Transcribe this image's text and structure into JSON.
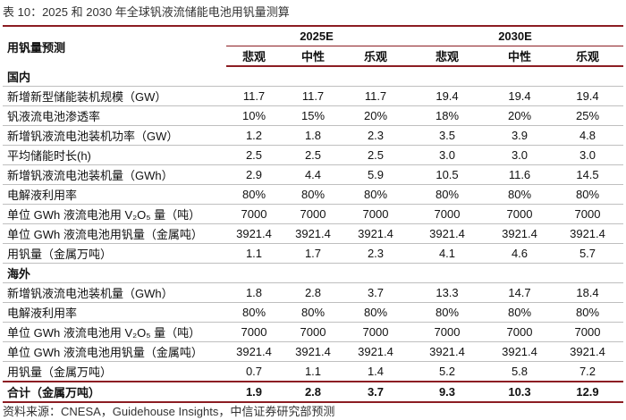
{
  "title": "表 10：2025 和 2030 年全球钒液流储能电池用钒量测算",
  "table": {
    "corner": "用钒量预测",
    "groups": [
      "2025E",
      "2030E"
    ],
    "scenarios": [
      "悲观",
      "中性",
      "乐观",
      "悲观",
      "中性",
      "乐观"
    ],
    "sections": [
      {
        "name": "国内",
        "rows": [
          {
            "label": "新增新型储能装机规模（GW）",
            "values": [
              "11.7",
              "11.7",
              "11.7",
              "19.4",
              "19.4",
              "19.4"
            ]
          },
          {
            "label": "钒液流电池渗透率",
            "values": [
              "10%",
              "15%",
              "20%",
              "18%",
              "20%",
              "25%"
            ]
          },
          {
            "label": "新增钒液流电池装机功率（GW）",
            "values": [
              "1.2",
              "1.8",
              "2.3",
              "3.5",
              "3.9",
              "4.8"
            ]
          },
          {
            "label": "平均储能时长(h)",
            "values": [
              "2.5",
              "2.5",
              "2.5",
              "3.0",
              "3.0",
              "3.0"
            ]
          },
          {
            "label": "新增钒液流电池装机量（GWh）",
            "values": [
              "2.9",
              "4.4",
              "5.9",
              "10.5",
              "11.6",
              "14.5"
            ]
          },
          {
            "label": "电解液利用率",
            "values": [
              "80%",
              "80%",
              "80%",
              "80%",
              "80%",
              "80%"
            ]
          },
          {
            "label": "单位 GWh 液流电池用 V₂O₅ 量（吨）",
            "values": [
              "7000",
              "7000",
              "7000",
              "7000",
              "7000",
              "7000"
            ]
          },
          {
            "label": "单位 GWh 液流电池用钒量（金属吨）",
            "values": [
              "3921.4",
              "3921.4",
              "3921.4",
              "3921.4",
              "3921.4",
              "3921.4"
            ]
          },
          {
            "label": "用钒量（金属万吨）",
            "values": [
              "1.1",
              "1.7",
              "2.3",
              "4.1",
              "4.6",
              "5.7"
            ]
          }
        ]
      },
      {
        "name": "海外",
        "rows": [
          {
            "label": "新增钒液流电池装机量（GWh）",
            "values": [
              "1.8",
              "2.8",
              "3.7",
              "13.3",
              "14.7",
              "18.4"
            ]
          },
          {
            "label": "电解液利用率",
            "values": [
              "80%",
              "80%",
              "80%",
              "80%",
              "80%",
              "80%"
            ]
          },
          {
            "label": "单位 GWh 液流电池用 V₂O₅ 量（吨）",
            "values": [
              "7000",
              "7000",
              "7000",
              "7000",
              "7000",
              "7000"
            ]
          },
          {
            "label": "单位 GWh 液流电池用钒量（金属吨）",
            "values": [
              "3921.4",
              "3921.4",
              "3921.4",
              "3921.4",
              "3921.4",
              "3921.4"
            ]
          },
          {
            "label": "用钒量（金属万吨）",
            "values": [
              "0.7",
              "1.1",
              "1.4",
              "5.2",
              "5.8",
              "7.2"
            ]
          }
        ]
      }
    ],
    "total": {
      "label": "合计（金属万吨）",
      "values": [
        "1.9",
        "2.8",
        "3.7",
        "9.3",
        "10.3",
        "12.9"
      ]
    }
  },
  "source": "资料来源：CNESA，Guidehouse Insights，中信证券研究部预测"
}
